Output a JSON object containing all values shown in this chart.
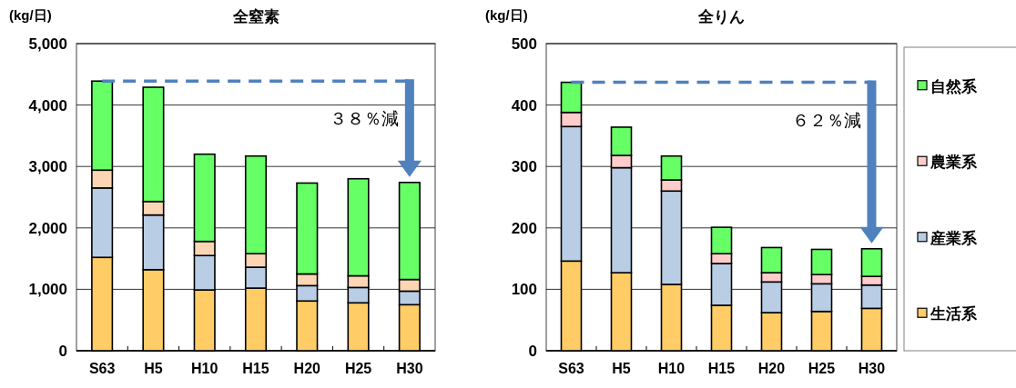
{
  "chart_data": [
    {
      "type": "bar",
      "title": "全窒素",
      "ylabel": "(kg/日)",
      "stacked": true,
      "grid": "y",
      "categories": [
        "S63",
        "H5",
        "H10",
        "H15",
        "H20",
        "H25",
        "H30"
      ],
      "ylim": [
        0,
        5000
      ],
      "yticks": [
        {
          "value": 0,
          "label": "0"
        },
        {
          "value": 1000,
          "label": "1,000"
        },
        {
          "value": 2000,
          "label": "2,000"
        },
        {
          "value": 3000,
          "label": "3,000"
        },
        {
          "value": 4000,
          "label": "4,000"
        },
        {
          "value": 5000,
          "label": "5,000"
        }
      ],
      "series": [
        {
          "color": "#ffcc66",
          "values": [
            1520,
            1320,
            990,
            1020,
            810,
            780,
            750
          ]
        },
        {
          "color": "#b9cde5",
          "values": [
            1130,
            890,
            560,
            340,
            250,
            250,
            220
          ]
        },
        {
          "color": "#fcd5b5",
          "values": [
            290,
            220,
            230,
            220,
            190,
            190,
            190
          ]
        },
        {
          "color": "#66ff66",
          "values": [
            1450,
            1860,
            1420,
            1590,
            1480,
            1580,
            1580
          ]
        }
      ],
      "ref_lines": [
        {
          "axis": "y",
          "value": 4390,
          "label": "３８％減",
          "color": "#4f81bd",
          "line_style": "dashed"
        }
      ]
    },
    {
      "type": "bar",
      "title": "全りん",
      "ylabel": "(kg/日)",
      "stacked": true,
      "grid": "y",
      "legend": "right",
      "categories": [
        "S63",
        "H5",
        "H10",
        "H15",
        "H20",
        "H25",
        "H30"
      ],
      "ylim": [
        0,
        500
      ],
      "yticks": [
        0,
        100,
        200,
        300,
        400,
        500
      ],
      "series": [
        {
          "name": "生活系",
          "color": "#ffcc66",
          "values": [
            146,
            127,
            108,
            74,
            62,
            64,
            69
          ]
        },
        {
          "name": "産業系",
          "color": "#b9cde5",
          "values": [
            219,
            171,
            152,
            68,
            50,
            45,
            38
          ]
        },
        {
          "name": "農業系",
          "color": "#ffcccc",
          "values": [
            23,
            20,
            18,
            16,
            15,
            15,
            14
          ]
        },
        {
          "name": "自然系",
          "color": "#66ff66",
          "values": [
            49,
            46,
            39,
            43,
            41,
            41,
            45
          ]
        }
      ],
      "ref_lines": [
        {
          "axis": "y",
          "value": 437,
          "label": "６２％減",
          "color": "#4f81bd",
          "line_style": "dashed"
        }
      ]
    }
  ]
}
